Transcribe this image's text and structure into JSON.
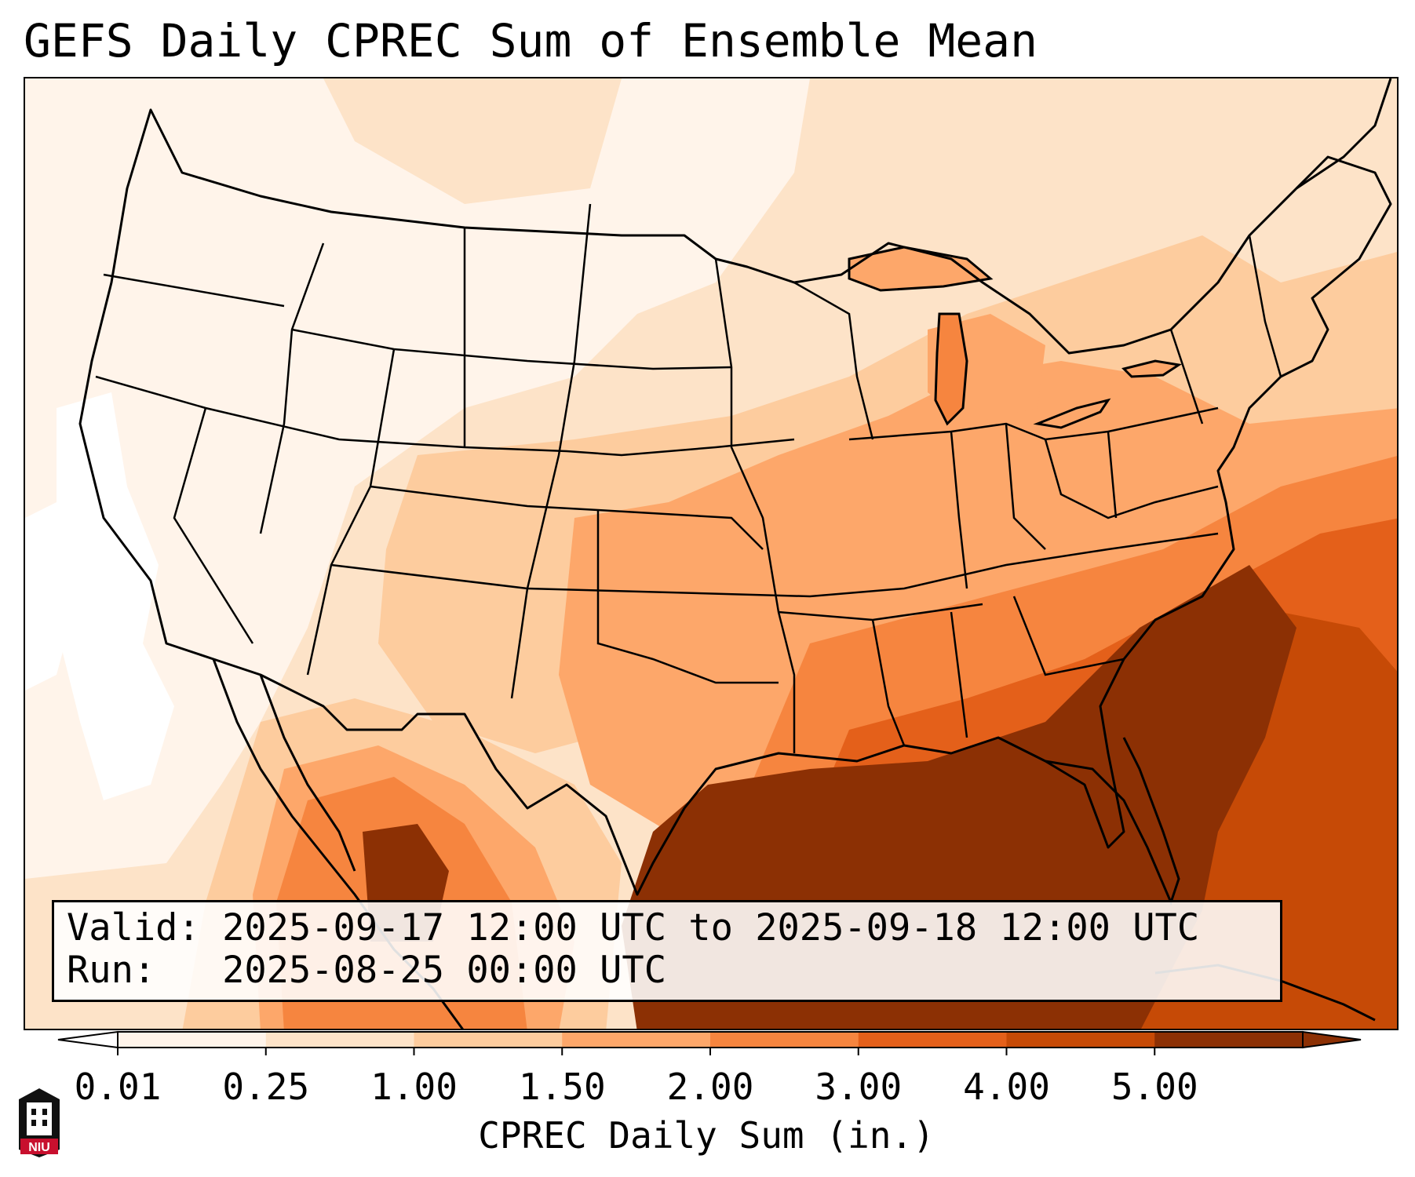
{
  "title": "GEFS Daily CPREC Sum of Ensemble Mean",
  "info": {
    "valid_line": "Valid: 2025-09-17 12:00 UTC to 2025-09-18 12:00 UTC",
    "run_line": "Run:   2025-08-25 00:00 UTC"
  },
  "colorbar": {
    "ticks": [
      "0.01",
      "0.25",
      "1.00",
      "1.50",
      "2.00",
      "3.00",
      "4.00",
      "5.00"
    ],
    "title": "CPREC Daily Sum (in.)",
    "colors": [
      "#fff4ea",
      "#fde3c8",
      "#fdcc9e",
      "#fda76a",
      "#f6853f",
      "#e4601a",
      "#c64a06",
      "#8c3004"
    ],
    "under_color": "#ffffff",
    "over_color": "#8c3004"
  },
  "logo": {
    "text": "NIU",
    "color": "#c8102e"
  }
}
